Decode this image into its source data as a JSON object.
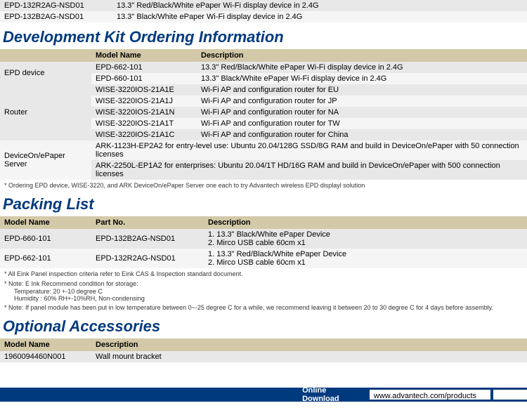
{
  "topRows": [
    {
      "model": "EPD-132R2AG-NSD01",
      "desc": "13.3\" Red/Black/White ePaper Wi-Fi display device in 2.4G",
      "bg": "row-even"
    },
    {
      "model": "EPD-132B2AG-NSD01",
      "desc": "13.3\" Black/White ePaper Wi-Fi display device in 2.4G",
      "bg": "row-odd"
    }
  ],
  "sections": {
    "devkit": {
      "title": "Development Kit Ordering Information",
      "headers": [
        "",
        "Model Name",
        "Description"
      ],
      "rows": [
        {
          "cat": "EPD device",
          "model": "EPD-662-101",
          "desc": "13.3\" Red/Black/White ePaper Wi-Fi display device in 2.4G",
          "bg": "row-even",
          "catRowspan": 2
        },
        {
          "cat": "",
          "model": "EPD-660-101",
          "desc": "13.3\" Black/White ePaper Wi-Fi display device in 2.4G",
          "bg": "row-odd"
        },
        {
          "cat": "Router",
          "model": "WISE-3220IOS-21A1E",
          "desc": "Wi-Fi AP and configuration router for EU",
          "bg": "row-even",
          "catRowspan": 5
        },
        {
          "cat": "",
          "model": "WISE-3220IOS-21A1J",
          "desc": "Wi-Fi AP and configuration router for JP",
          "bg": "row-odd"
        },
        {
          "cat": "",
          "model": "WISE-3220IOS-21A1N",
          "desc": "Wi-Fi AP and configuration router for NA",
          "bg": "row-even"
        },
        {
          "cat": "",
          "model": "WISE-3220IOS-21A1T",
          "desc": "Wi-Fi AP and configuration router for TW",
          "bg": "row-odd"
        },
        {
          "cat": "",
          "model": "WISE-3220IOS-21A1C",
          "desc": "Wi-Fi AP and configuration router for China",
          "bg": "row-even"
        },
        {
          "cat": "DeviceOn/ePaper Server",
          "merged": "ARK-1123H-EP2A2 for entry-level use: Ubuntu 20.04/128G SSD/8G RAM and build in DeviceOn/ePaper with 50 connection licenses",
          "bg": "row-odd",
          "catRowspan": 2
        },
        {
          "cat": "",
          "merged": "ARK-2250L-EP1A2 for enterprises: Ubuntu 20.04/1T HD/16G RAM and build in DeviceOn/ePaper with 500 connection licenses",
          "bg": "row-even"
        }
      ],
      "footnote": "*   Ordering EPD device, WISE-3220, and ARK DeviceOn/ePaper Server one each to try Advantech wireless EPD displayl solution"
    },
    "packing": {
      "title": "Packing List",
      "headers": [
        "Model Name",
        "Part No.",
        "Description"
      ],
      "rows": [
        {
          "model": "EPD-660-101",
          "part": "EPD-132B2AG-NSD01",
          "desc": "1. 13.3\" Black/White ePaper Device\n2. Mirco USB cable 60cm x1",
          "bg": "row-even"
        },
        {
          "model": "EPD-662-101",
          "part": "EPD-132R2AG-NSD01",
          "desc": "1. 13.3\" Red/Black/White ePaper Device\n2. Mirco USB cable 60cm x1",
          "bg": "row-odd"
        }
      ],
      "footnotes": [
        "*   All Eink Panel inspection criteria refer to Eink CAS & Inspection standard document.",
        "*   Note: E Ink Recommend condition for storage:",
        "Temperature: 20 +-10 degree C",
        "Humidity : 60% RH+-10%RH, Non-condensing",
        "*   Note: If panel module has been put in low temperature between 0~-25 degree C for a while, we recommend leaving it between 20 to 30 degree C for 4 days before assembly."
      ]
    },
    "optional": {
      "title": "Optional Accessories",
      "headers": [
        "Model Name",
        "Description"
      ],
      "rows": [
        {
          "model": "1960094460N001",
          "desc": "Wall mount bracket",
          "bg": "row-even"
        }
      ]
    }
  },
  "footer": {
    "label": "Online Download",
    "url": "www.advantech.com/products"
  }
}
